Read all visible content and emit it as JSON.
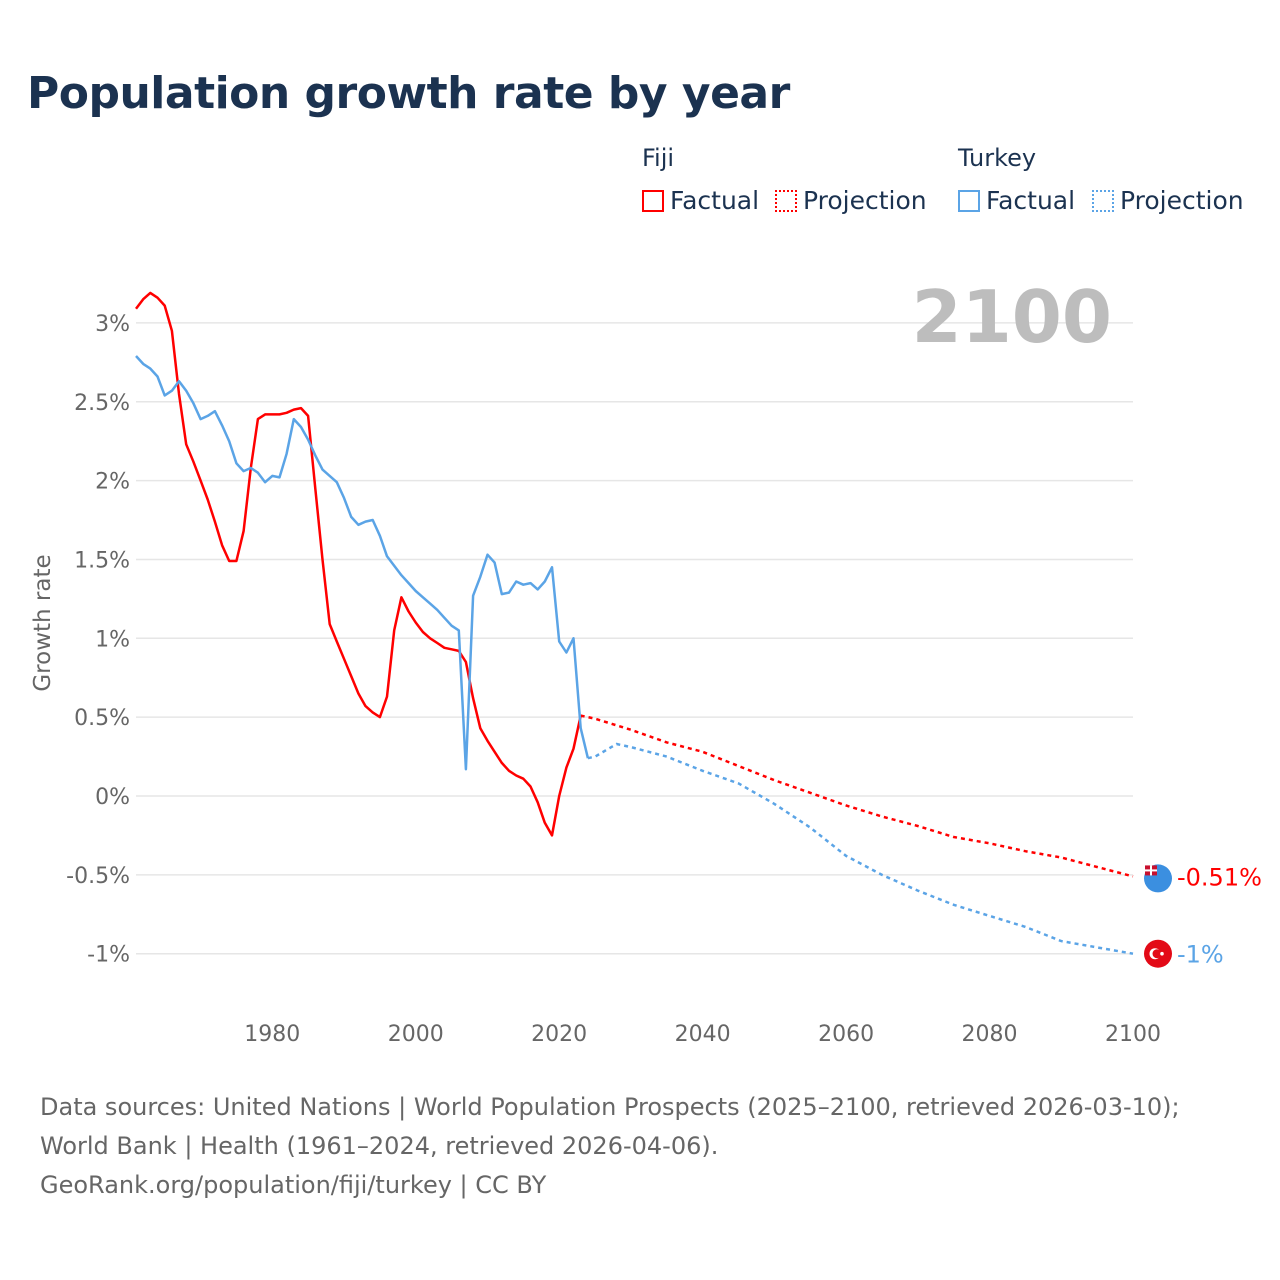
{
  "title": "Population growth rate by year",
  "legend": {
    "groups": [
      {
        "name": "Fiji",
        "factual": "Factual",
        "projection": "Projection",
        "color": "#ff0000"
      },
      {
        "name": "Turkey",
        "factual": "Factual",
        "projection": "Projection",
        "color": "#5ba4e6"
      }
    ]
  },
  "year_label": "2100",
  "footer": {
    "sources": "Data sources: United Nations | World Population Prospects (2025–2100, retrieved 2026-03-10); World Bank | Health (1961–2024, retrieved 2026-04-06).",
    "link": "GeoRank.org/population/fiji/turkey | CC BY"
  },
  "chart_data": {
    "type": "line",
    "title": "Population growth rate by year",
    "xlabel": "",
    "ylabel": "Growth rate",
    "xlim": [
      1961,
      2100
    ],
    "ylim": [
      -1.25,
      3.3
    ],
    "xticks": [
      1980,
      2000,
      2020,
      2040,
      2060,
      2080,
      2100
    ],
    "yticks": [
      {
        "v": 3,
        "label": "3%"
      },
      {
        "v": 2.5,
        "label": "2.5%"
      },
      {
        "v": 2,
        "label": "2%"
      },
      {
        "v": 1.5,
        "label": "1.5%"
      },
      {
        "v": 1,
        "label": "1%"
      },
      {
        "v": 0.5,
        "label": "0.5%"
      },
      {
        "v": 0,
        "label": "0%"
      },
      {
        "v": -0.5,
        "label": "-0.5%"
      },
      {
        "v": -1,
        "label": "-1%"
      }
    ],
    "grid": true,
    "series": [
      {
        "name": "Fiji",
        "color": "#ff0000",
        "end_label": "-0.51%",
        "factual": {
          "start_year": 1961,
          "values": [
            3.09,
            3.15,
            3.19,
            3.16,
            3.11,
            2.95,
            2.55,
            2.23,
            2.12,
            2.0,
            1.88,
            1.74,
            1.59,
            1.49,
            1.49,
            1.68,
            2.08,
            2.39,
            2.42,
            2.42,
            2.42,
            2.43,
            2.45,
            2.46,
            2.41,
            1.95,
            1.5,
            1.09,
            0.98,
            0.87,
            0.76,
            0.65,
            0.57,
            0.53,
            0.5,
            0.63,
            1.05,
            1.26,
            1.17,
            1.1,
            1.04,
            1.0,
            0.97,
            0.94,
            0.93,
            0.92,
            0.85,
            0.62,
            0.43,
            0.35,
            0.28,
            0.21,
            0.16,
            0.13,
            0.11,
            0.06,
            -0.04,
            -0.17,
            -0.25,
            0.0,
            0.18,
            0.3,
            0.51
          ]
        },
        "projection": [
          [
            2023,
            0.51
          ],
          [
            2025,
            0.49
          ],
          [
            2030,
            0.42
          ],
          [
            2035,
            0.34
          ],
          [
            2040,
            0.28
          ],
          [
            2045,
            0.19
          ],
          [
            2050,
            0.1
          ],
          [
            2055,
            0.02
          ],
          [
            2060,
            -0.06
          ],
          [
            2065,
            -0.13
          ],
          [
            2070,
            -0.19
          ],
          [
            2075,
            -0.26
          ],
          [
            2080,
            -0.3
          ],
          [
            2085,
            -0.35
          ],
          [
            2090,
            -0.39
          ],
          [
            2095,
            -0.45
          ],
          [
            2100,
            -0.51
          ]
        ]
      },
      {
        "name": "Turkey",
        "color": "#5ba4e6",
        "end_label": "-1%",
        "factual": {
          "start_year": 1961,
          "values": [
            2.79,
            2.74,
            2.71,
            2.66,
            2.54,
            2.57,
            2.63,
            2.57,
            2.49,
            2.39,
            2.41,
            2.44,
            2.35,
            2.25,
            2.11,
            2.06,
            2.08,
            2.05,
            1.99,
            2.03,
            2.02,
            2.17,
            2.39,
            2.34,
            2.26,
            2.16,
            2.07,
            2.03,
            1.99,
            1.89,
            1.77,
            1.72,
            1.74,
            1.75,
            1.65,
            1.52,
            1.46,
            1.4,
            1.35,
            1.3,
            1.26,
            1.22,
            1.18,
            1.13,
            1.08,
            1.05,
            0.17,
            1.27,
            1.39,
            1.53,
            1.48,
            1.28,
            1.29,
            1.36,
            1.34,
            1.35,
            1.31,
            1.36,
            1.45,
            0.98,
            0.91,
            1.0,
            0.43,
            0.24
          ]
        },
        "projection": [
          [
            2024,
            0.24
          ],
          [
            2025,
            0.25
          ],
          [
            2028,
            0.33
          ],
          [
            2030,
            0.31
          ],
          [
            2035,
            0.25
          ],
          [
            2040,
            0.16
          ],
          [
            2045,
            0.08
          ],
          [
            2050,
            -0.05
          ],
          [
            2055,
            -0.2
          ],
          [
            2060,
            -0.38
          ],
          [
            2065,
            -0.5
          ],
          [
            2070,
            -0.6
          ],
          [
            2075,
            -0.69
          ],
          [
            2080,
            -0.76
          ],
          [
            2085,
            -0.83
          ],
          [
            2090,
            -0.92
          ],
          [
            2095,
            -0.96
          ],
          [
            2100,
            -1.0
          ]
        ]
      }
    ]
  }
}
